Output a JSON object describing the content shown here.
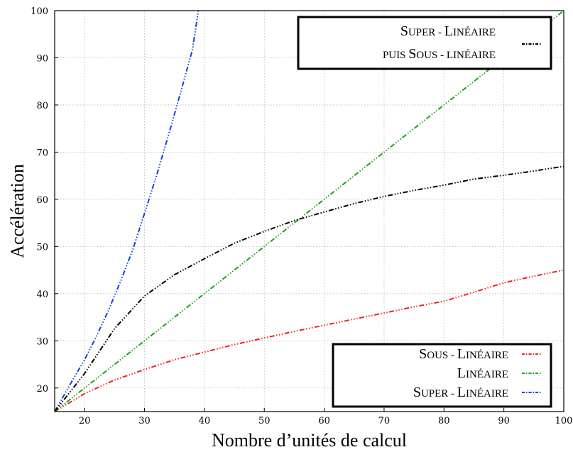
{
  "chart_data": {
    "type": "line",
    "xlabel": "Nombre d’unités de calcul",
    "ylabel": "Accélération",
    "xlim": [
      15,
      100
    ],
    "ylim": [
      15,
      100
    ],
    "xticks": [
      20,
      30,
      40,
      50,
      60,
      70,
      80,
      90,
      100
    ],
    "yticks": [
      20,
      30,
      40,
      50,
      60,
      70,
      80,
      90,
      100
    ],
    "grid": true,
    "series": [
      {
        "name_parts": [
          [
            "S",
            "OUS - "
          ],
          [
            "L",
            "INÉAIRE"
          ]
        ],
        "name": "Sous - Linéaire",
        "color": "#e8262a",
        "legend": "bottom-right",
        "x": [
          15,
          20,
          25,
          30,
          35,
          40,
          45,
          50,
          55,
          60,
          65,
          70,
          75,
          80,
          85,
          90,
          95,
          100
        ],
        "y": [
          15,
          18.8,
          21.7,
          23.9,
          26.0,
          27.6,
          29.2,
          30.6,
          32.0,
          33.3,
          34.6,
          35.9,
          37.2,
          38.4,
          40.3,
          42.3,
          43.7,
          45.0
        ]
      },
      {
        "name_parts": [
          [
            "L",
            "INÉAIRE"
          ]
        ],
        "name": "Linéaire",
        "color": "#1aa51a",
        "legend": "bottom-right",
        "x": [
          15,
          100
        ],
        "y": [
          15,
          100
        ]
      },
      {
        "name_parts": [
          [
            "S",
            "UPER - "
          ],
          [
            "L",
            "INÉAIRE"
          ]
        ],
        "name": "Super - Linéaire",
        "color": "#1441d8",
        "legend": "bottom-right",
        "x": [
          15,
          18,
          20,
          22,
          24,
          26,
          28,
          30,
          32,
          34,
          36,
          38,
          39
        ],
        "y": [
          15,
          21.7,
          26.0,
          31.0,
          36.5,
          42.6,
          49.2,
          57.0,
          65.0,
          73.6,
          82.5,
          91.7,
          100
        ]
      },
      {
        "name_parts": [
          [
            "S",
            "UPER - "
          ],
          [
            "L",
            "INÉAIRE"
          ]
        ],
        "name_line2_parts": [
          [
            "",
            "PUIS "
          ],
          [
            "S",
            "OUS - LINÉAIRE"
          ]
        ],
        "name": "Super - Linéaire puis Sous - linéaire",
        "color": "#000000",
        "legend": "top-right",
        "x": [
          15,
          20,
          25,
          30,
          35,
          40,
          45,
          50,
          55,
          60,
          65,
          70,
          75,
          80,
          85,
          90,
          95,
          100
        ],
        "y": [
          15,
          23.1,
          32.6,
          39.5,
          44.0,
          47.4,
          50.7,
          53.2,
          55.5,
          57.3,
          59.1,
          60.6,
          61.9,
          63.0,
          64.3,
          65.1,
          66.0,
          67.0
        ]
      }
    ],
    "legend_top": {
      "line1": [
        "S",
        "UPER - ",
        "L",
        "INÉAIRE"
      ],
      "line2": [
        "PUIS ",
        "S",
        "OUS - LINÉAIRE"
      ]
    },
    "legend_bottom": [
      [
        "S",
        "OUS - ",
        "L",
        "INÉAIRE"
      ],
      [
        "L",
        "INÉAIRE"
      ],
      [
        "S",
        "UPER - ",
        "L",
        "INÉAIRE"
      ]
    ]
  }
}
